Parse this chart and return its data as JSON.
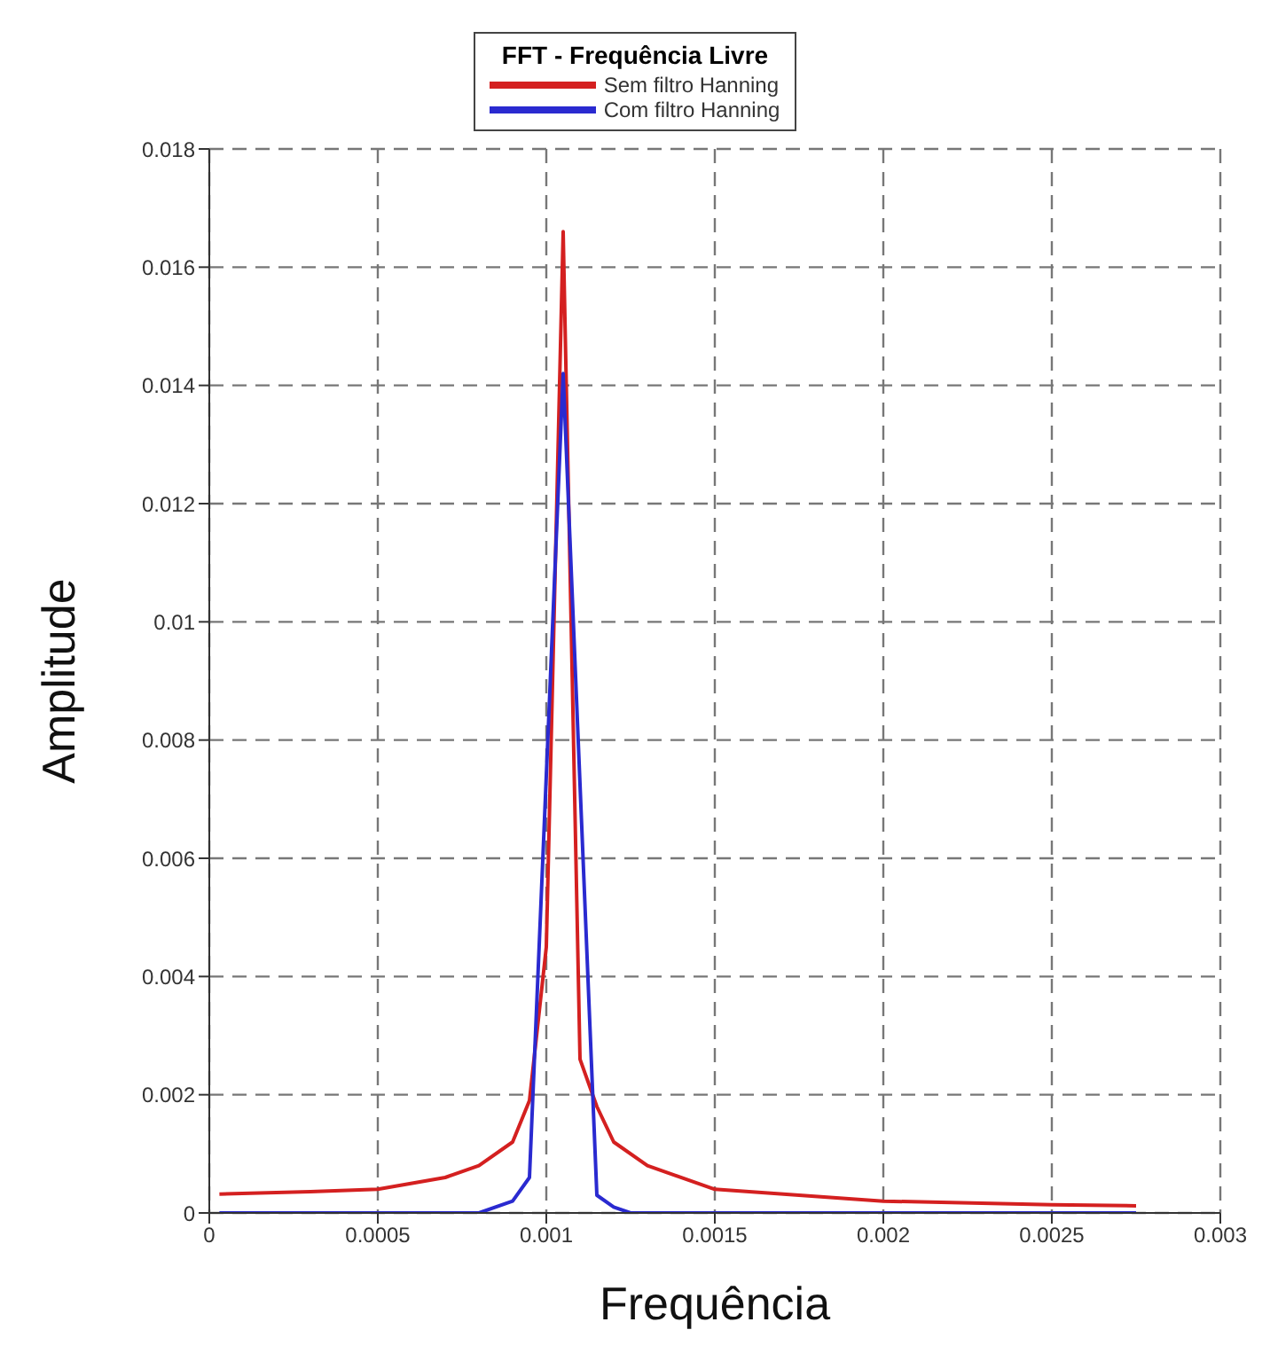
{
  "chart_data": {
    "type": "line",
    "legend_title": "FFT - Frequência Livre",
    "xlabel": "Frequência",
    "ylabel": "Amplitude",
    "xlim": [
      0,
      0.003
    ],
    "xticks": [
      0,
      0.0005,
      0.001,
      0.0015,
      0.002,
      0.0025,
      0.003
    ],
    "ylim": [
      0,
      0.018
    ],
    "yticks": [
      0,
      0.002,
      0.004,
      0.006,
      0.008,
      0.01,
      0.012,
      0.014,
      0.016,
      0.018
    ],
    "grid": true,
    "legend": "top",
    "marker": "none",
    "line_style": "solid",
    "series": [
      {
        "name": "Sem filtro Hanning",
        "color": "#d42020",
        "x": [
          3e-05,
          0.0003,
          0.0005,
          0.0007,
          0.0008,
          0.0009,
          0.00095,
          0.001,
          0.00105,
          0.0011,
          0.00115,
          0.0012,
          0.0013,
          0.0015,
          0.002,
          0.0025,
          0.00275
        ],
        "values": [
          0.00032,
          0.00036,
          0.0004,
          0.0006,
          0.0008,
          0.0012,
          0.0019,
          0.0045,
          0.0166,
          0.0026,
          0.0018,
          0.0012,
          0.0008,
          0.0004,
          0.0002,
          0.00014,
          0.00012
        ]
      },
      {
        "name": "Com filtro Hanning",
        "color": "#2a2ad0",
        "x": [
          3e-05,
          0.0005,
          0.0008,
          0.0009,
          0.00095,
          0.00105,
          0.00115,
          0.0012,
          0.00125,
          0.0015,
          0.002,
          0.00275
        ],
        "values": [
          0,
          0,
          0,
          0.0002,
          0.0006,
          0.0142,
          0.0003,
          0.0001,
          0,
          0,
          0,
          0
        ]
      }
    ]
  }
}
